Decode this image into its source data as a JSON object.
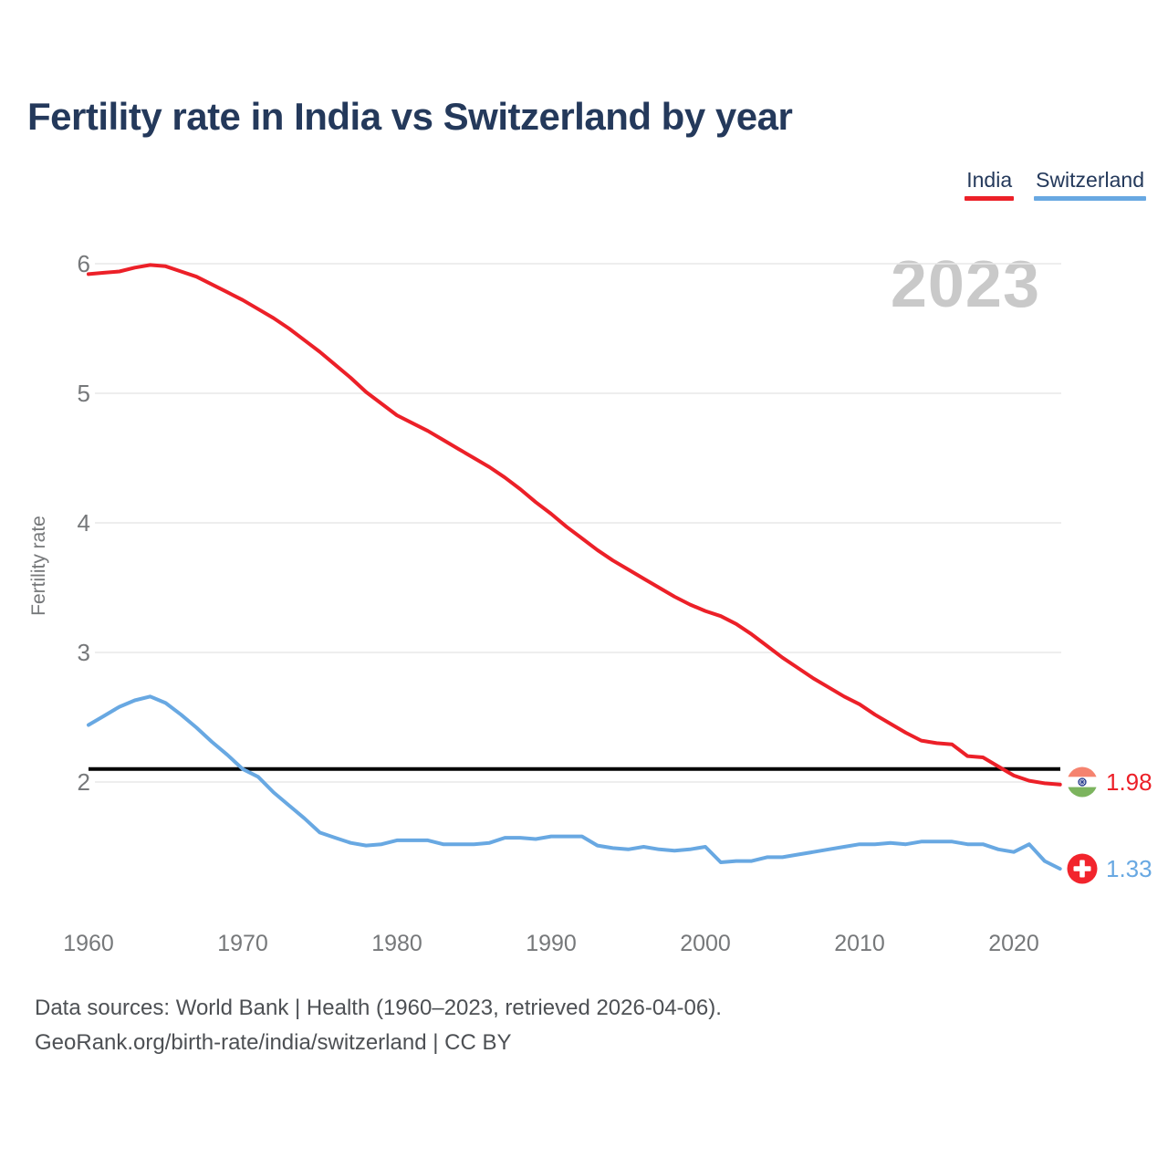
{
  "title": "Fertility rate in India vs Switzerland by year",
  "watermark": "2023",
  "legend": [
    {
      "label": "India",
      "color": "#ec2028"
    },
    {
      "label": "Switzerland",
      "color": "#68a8e2"
    }
  ],
  "end_labels": [
    {
      "series": "India",
      "icon": "india-flag-icon",
      "value": "1.98",
      "color": "#ec2028"
    },
    {
      "series": "Switzerland",
      "icon": "switzerland-flag-icon",
      "value": "1.33",
      "color": "#68a8e2"
    }
  ],
  "replacement_line": {
    "value": 2.1,
    "color": "#000000"
  },
  "footer": {
    "line1": "Data sources: World Bank | Health (1960–2023, retrieved 2026-04-06).",
    "line2": "GeoRank.org/birth-rate/india/switzerland | CC BY"
  },
  "colors": {
    "title_text": "#24395b",
    "axis_text": "#76787a",
    "gridline": "#e9e9e9",
    "watermark": "#c9c9c9",
    "footer_text": "#4d5054"
  },
  "chart_data": {
    "type": "line",
    "title": "Fertility rate in India vs Switzerland by year",
    "xlabel": "",
    "ylabel": "Fertility rate",
    "grid": "horizontal",
    "legend_position": "top-right",
    "ylim": [
      1.1,
      6.2
    ],
    "xlim": [
      1959,
      2024
    ],
    "y_ticks": [
      6,
      5,
      4,
      3,
      2
    ],
    "x_ticks": [
      1960,
      1970,
      1980,
      1990,
      2000,
      2010,
      2020
    ],
    "x": [
      1960,
      1961,
      1962,
      1963,
      1964,
      1965,
      1966,
      1967,
      1968,
      1969,
      1970,
      1971,
      1972,
      1973,
      1974,
      1975,
      1976,
      1977,
      1978,
      1979,
      1980,
      1981,
      1982,
      1983,
      1984,
      1985,
      1986,
      1987,
      1988,
      1989,
      1990,
      1991,
      1992,
      1993,
      1994,
      1995,
      1996,
      1997,
      1998,
      1999,
      2000,
      2001,
      2002,
      2003,
      2004,
      2005,
      2006,
      2007,
      2008,
      2009,
      2010,
      2011,
      2012,
      2013,
      2014,
      2015,
      2016,
      2017,
      2018,
      2019,
      2020,
      2021,
      2022,
      2023
    ],
    "series": [
      {
        "name": "India",
        "color": "#ec2028",
        "final_value": 1.98,
        "values": [
          5.92,
          5.93,
          5.94,
          5.97,
          5.99,
          5.98,
          5.94,
          5.9,
          5.84,
          5.78,
          5.72,
          5.65,
          5.58,
          5.5,
          5.41,
          5.32,
          5.22,
          5.12,
          5.01,
          4.92,
          4.83,
          4.77,
          4.71,
          4.64,
          4.57,
          4.5,
          4.43,
          4.35,
          4.26,
          4.16,
          4.07,
          3.97,
          3.88,
          3.79,
          3.71,
          3.64,
          3.57,
          3.5,
          3.43,
          3.37,
          3.32,
          3.28,
          3.22,
          3.14,
          3.05,
          2.96,
          2.88,
          2.8,
          2.73,
          2.66,
          2.6,
          2.52,
          2.45,
          2.38,
          2.32,
          2.3,
          2.29,
          2.2,
          2.19,
          2.12,
          2.05,
          2.01,
          1.99,
          1.98
        ]
      },
      {
        "name": "Switzerland",
        "color": "#68a8e2",
        "final_value": 1.33,
        "values": [
          2.44,
          2.51,
          2.58,
          2.63,
          2.66,
          2.61,
          2.52,
          2.42,
          2.31,
          2.21,
          2.1,
          2.04,
          1.92,
          1.82,
          1.72,
          1.61,
          1.57,
          1.53,
          1.51,
          1.52,
          1.55,
          1.55,
          1.55,
          1.52,
          1.52,
          1.52,
          1.53,
          1.57,
          1.57,
          1.56,
          1.58,
          1.58,
          1.58,
          1.51,
          1.49,
          1.48,
          1.5,
          1.48,
          1.47,
          1.48,
          1.5,
          1.38,
          1.39,
          1.39,
          1.42,
          1.42,
          1.44,
          1.46,
          1.48,
          1.5,
          1.52,
          1.52,
          1.53,
          1.52,
          1.54,
          1.54,
          1.54,
          1.52,
          1.52,
          1.48,
          1.46,
          1.52,
          1.39,
          1.33
        ]
      }
    ],
    "annotations": [
      {
        "text": "2023",
        "role": "watermark"
      },
      {
        "value": 2.1,
        "role": "replacement-fertility-reference-line"
      }
    ]
  }
}
